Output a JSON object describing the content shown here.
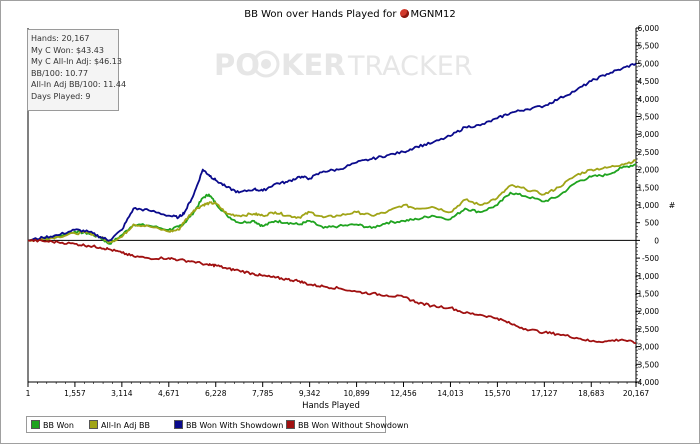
{
  "title": "BB Won over Hands Played for",
  "player": "MGNM12",
  "watermark": "POKERTRACKER",
  "stats": [
    "Hands: 20,167",
    "My C Won: $43.43",
    "My C All-In Adj: $46.13",
    "BB/100: 10.77",
    "All-In Adj BB/100: 11.44",
    "Days Played: 9"
  ],
  "legend": [
    {
      "label": "BB Won",
      "color": "#1fa31f"
    },
    {
      "label": "All-In Adj BB",
      "color": "#a0a417"
    },
    {
      "label": "BB Won With Showdown",
      "color": "#0a0a8c"
    },
    {
      "label": "BB Won Without Showdown",
      "color": "#a01010"
    }
  ],
  "chart_data": {
    "type": "line",
    "xlabel": "Hands Played",
    "ylabel": "#",
    "xlim": [
      1,
      20167
    ],
    "ylim": [
      -4000,
      6000
    ],
    "x_ticks": [
      "1",
      "1,557",
      "3,114",
      "4,671",
      "6,228",
      "7,785",
      "9,342",
      "10,899",
      "12,456",
      "14,013",
      "15,570",
      "17,127",
      "18,683",
      "20,167"
    ],
    "y_ticks": [
      "6,000",
      "5,500",
      "5,000",
      "4,500",
      "4,000",
      "3,500",
      "3,000",
      "2,500",
      "2,000",
      "1,500",
      "1,000",
      "500",
      "0",
      "-500",
      "-1,000",
      "-1,500",
      "-2,000",
      "-2,500",
      "-3,000",
      "-3,500",
      "-4,000"
    ],
    "grid": false,
    "series": [
      {
        "name": "BB Won",
        "color": "#1fa31f",
        "x": [
          1,
          500,
          1000,
          1557,
          2000,
          2400,
          2700,
          3114,
          3500,
          4000,
          4671,
          5000,
          5200,
          5500,
          5800,
          6000,
          6228,
          6600,
          7000,
          7500,
          7785,
          8200,
          8600,
          9000,
          9342,
          9800,
          10300,
          10899,
          11400,
          11900,
          12456,
          12900,
          13400,
          14013,
          14500,
          15000,
          15570,
          16000,
          16500,
          17127,
          17600,
          18200,
          18683,
          19200,
          19700,
          20167
        ],
        "y": [
          0,
          50,
          120,
          250,
          200,
          80,
          -100,
          150,
          450,
          420,
          300,
          380,
          500,
          800,
          1200,
          1300,
          1050,
          700,
          500,
          550,
          400,
          550,
          500,
          450,
          550,
          350,
          400,
          450,
          350,
          500,
          550,
          600,
          700,
          600,
          900,
          800,
          1000,
          1350,
          1250,
          1100,
          1250,
          1650,
          1800,
          1850,
          2050,
          2150
        ]
      },
      {
        "name": "All-In Adj BB",
        "color": "#a0a417",
        "x": [
          1,
          500,
          1000,
          1557,
          2000,
          2400,
          2700,
          3114,
          3500,
          4000,
          4671,
          5000,
          5200,
          5500,
          5800,
          6000,
          6228,
          6600,
          7000,
          7500,
          7785,
          8200,
          8600,
          9000,
          9342,
          9800,
          10300,
          10899,
          11400,
          11900,
          12456,
          12900,
          13400,
          14013,
          14500,
          15000,
          15570,
          16000,
          16500,
          17127,
          17600,
          18200,
          18683,
          19200,
          19700,
          20167
        ],
        "y": [
          0,
          40,
          100,
          200,
          220,
          100,
          -50,
          100,
          450,
          400,
          250,
          300,
          550,
          850,
          1000,
          1050,
          1050,
          750,
          700,
          750,
          700,
          800,
          700,
          650,
          800,
          650,
          700,
          800,
          700,
          800,
          1000,
          900,
          950,
          800,
          1150,
          1000,
          1200,
          1550,
          1450,
          1300,
          1500,
          1850,
          2000,
          2050,
          2150,
          2250
        ]
      },
      {
        "name": "BB Won With Showdown",
        "color": "#0a0a8c",
        "x": [
          1,
          500,
          1000,
          1557,
          2000,
          2400,
          2700,
          3114,
          3500,
          4000,
          4671,
          5000,
          5200,
          5500,
          5800,
          6000,
          6228,
          6600,
          7000,
          7500,
          7785,
          8200,
          8600,
          9000,
          9342,
          9800,
          10300,
          10899,
          11400,
          11900,
          12456,
          12900,
          13400,
          14013,
          14500,
          15000,
          15570,
          16000,
          16500,
          17127,
          17600,
          18200,
          18683,
          19200,
          19700,
          20167
        ],
        "y": [
          0,
          80,
          150,
          300,
          250,
          100,
          0,
          300,
          900,
          850,
          700,
          650,
          800,
          1300,
          2000,
          1850,
          1700,
          1500,
          1350,
          1450,
          1400,
          1600,
          1650,
          1800,
          1750,
          1950,
          2000,
          2200,
          2300,
          2400,
          2500,
          2650,
          2750,
          2950,
          3200,
          3250,
          3450,
          3600,
          3700,
          3800,
          4000,
          4250,
          4500,
          4700,
          4850,
          5000
        ]
      },
      {
        "name": "BB Won Without Showdown",
        "color": "#a01010",
        "x": [
          1,
          500,
          1000,
          1557,
          2000,
          2400,
          2700,
          3114,
          3500,
          4000,
          4671,
          5000,
          5500,
          6000,
          6228,
          6600,
          7000,
          7500,
          7785,
          8200,
          8600,
          9000,
          9342,
          9800,
          10300,
          10899,
          11400,
          11900,
          12456,
          12900,
          13400,
          14013,
          14500,
          15000,
          15570,
          16000,
          16500,
          17127,
          17600,
          18200,
          18683,
          19200,
          19700,
          20167
        ],
        "y": [
          0,
          -20,
          -50,
          -100,
          -150,
          -200,
          -250,
          -350,
          -450,
          -500,
          -500,
          -550,
          -600,
          -700,
          -700,
          -800,
          -850,
          -950,
          -1000,
          -1050,
          -1100,
          -1150,
          -1250,
          -1300,
          -1350,
          -1450,
          -1500,
          -1550,
          -1600,
          -1750,
          -1850,
          -1900,
          -2050,
          -2100,
          -2200,
          -2350,
          -2500,
          -2600,
          -2650,
          -2750,
          -2850,
          -2850,
          -2800,
          -2900
        ]
      }
    ]
  }
}
